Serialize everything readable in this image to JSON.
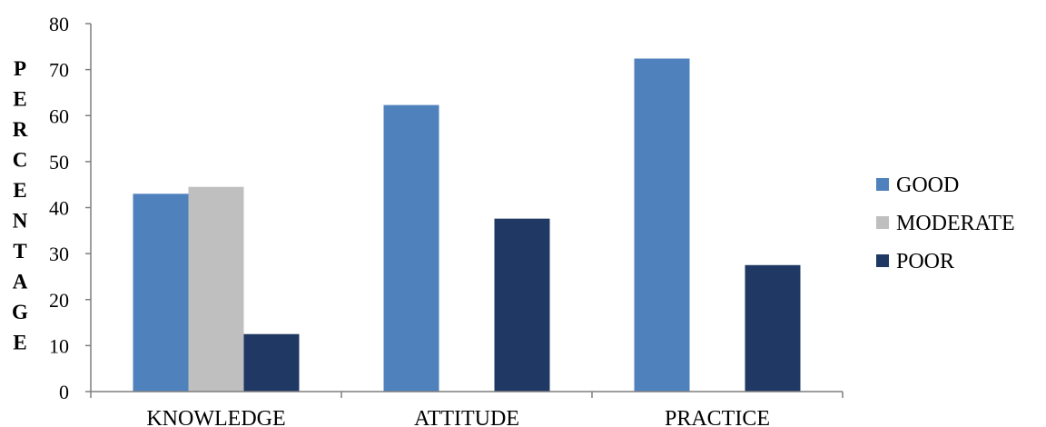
{
  "chart_data": {
    "type": "bar",
    "title": "",
    "xlabel": "",
    "ylabel": "PERCENTAGE",
    "ylim": [
      0,
      80
    ],
    "yticks": [
      "0",
      "10",
      "20",
      "30",
      "40",
      "50",
      "60",
      "70",
      "80"
    ],
    "categories": [
      "KNOWLEDGE",
      "ATTITUDE",
      "PRACTICE"
    ],
    "series": [
      {
        "name": "GOOD",
        "color": "#4f81bd",
        "values": [
          43,
          62.3,
          72.4
        ]
      },
      {
        "name": "MODERATE",
        "color": "#bfbfbf",
        "values": [
          44.5,
          null,
          null
        ]
      },
      {
        "name": "POOR",
        "color": "#1f3864",
        "values": [
          12.5,
          37.6,
          27.5
        ]
      }
    ],
    "grid": false,
    "legend": "right"
  }
}
